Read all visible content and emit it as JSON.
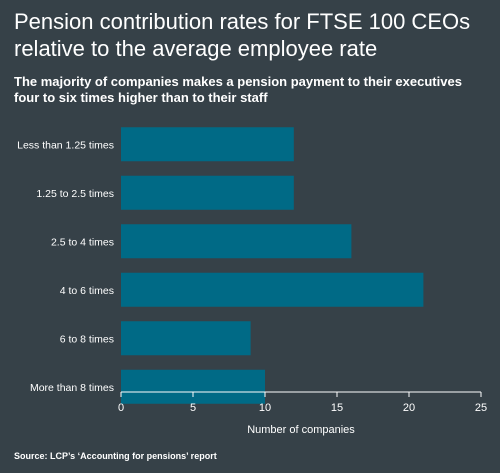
{
  "title": "Pension contribution rates for FTSE 100 CEOs relative to the average employee rate",
  "subtitle": "The majority of companies makes a pension payment to their executives four to six times higher than to their staff",
  "source": "Source: LCP’s ‘Accounting for pensions’ report",
  "colors": {
    "background": "#364148",
    "bar": "#006a86",
    "text": "#ffffff"
  },
  "chart_data": {
    "type": "bar",
    "orientation": "horizontal",
    "categories": [
      "Less than 1.25 times",
      "1.25 to 2.5 times",
      "2.5 to 4 times",
      "4 to 6 times",
      "6 to 8 times",
      "More than 8 times"
    ],
    "values": [
      12,
      12,
      16,
      21,
      9,
      10
    ],
    "xlabel": "Number of companies",
    "ylabel": "",
    "xlim": [
      0,
      25
    ],
    "xticks": [
      "0",
      "5",
      "10",
      "15",
      "20",
      "25"
    ],
    "grid": false,
    "legend": "none"
  }
}
